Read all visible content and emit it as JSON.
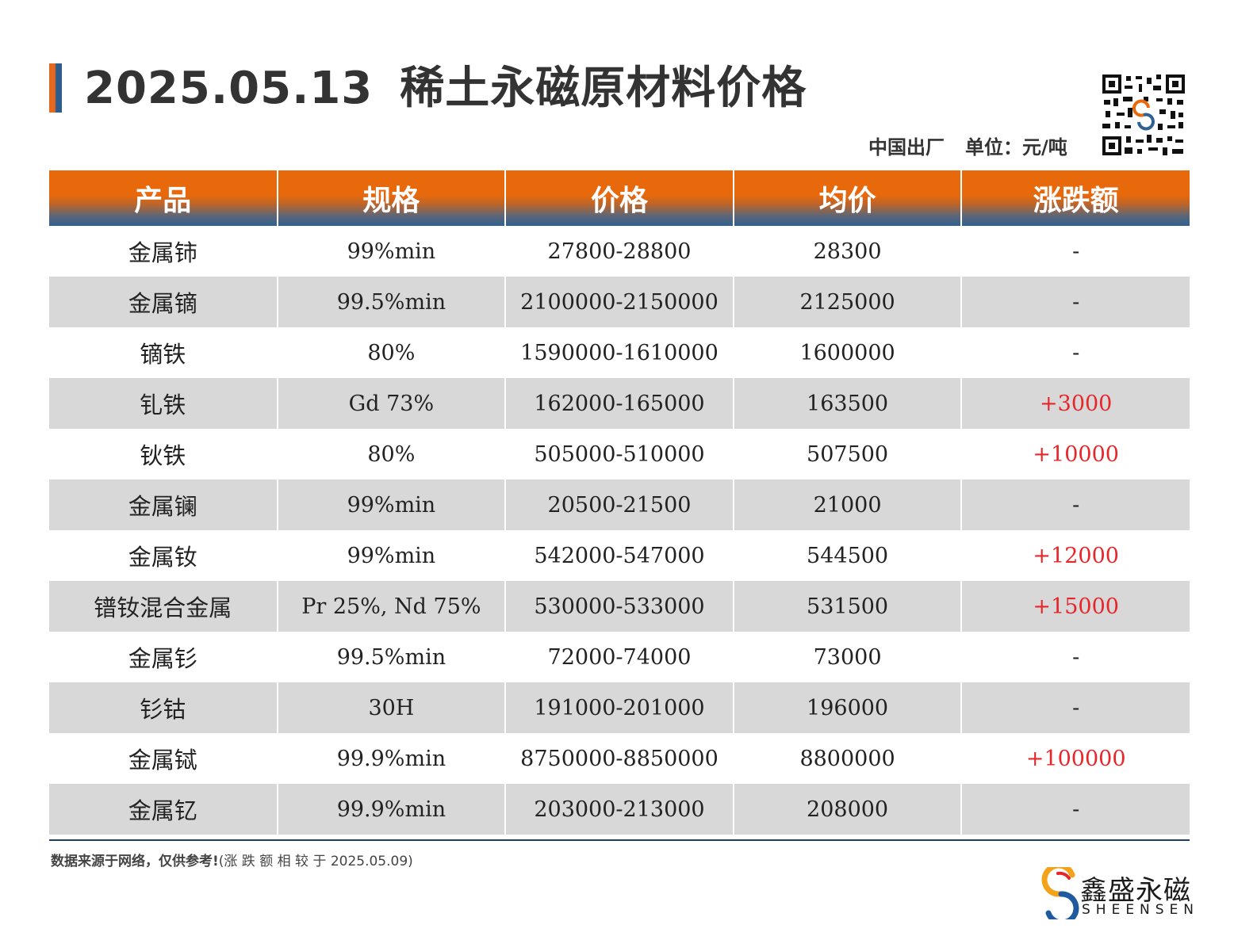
{
  "header": {
    "date": "2025.05.13",
    "title": "稀土永磁原材料价格",
    "origin": "中国出厂",
    "unit": "单位：元/吨"
  },
  "table": {
    "columns": [
      "产品",
      "规格",
      "价格",
      "均价",
      "涨跌额"
    ],
    "rows": [
      {
        "product": "金属铈",
        "spec": "99%min",
        "price": "27800-28800",
        "avg": "28300",
        "change": "-"
      },
      {
        "product": "金属镝",
        "spec": "99.5%min",
        "price": "2100000-2150000",
        "avg": "2125000",
        "change": "-"
      },
      {
        "product": "镝铁",
        "spec": "80%",
        "price": "1590000-1610000",
        "avg": "1600000",
        "change": "-"
      },
      {
        "product": "钆铁",
        "spec": "Gd 73%",
        "price": "162000-165000",
        "avg": "163500",
        "change": "+3000"
      },
      {
        "product": "钬铁",
        "spec": "80%",
        "price": "505000-510000",
        "avg": "507500",
        "change": "+10000"
      },
      {
        "product": "金属镧",
        "spec": "99%min",
        "price": "20500-21500",
        "avg": "21000",
        "change": "-"
      },
      {
        "product": "金属钕",
        "spec": "99%min",
        "price": "542000-547000",
        "avg": "544500",
        "change": "+12000"
      },
      {
        "product": "镨钕混合金属",
        "spec": "Pr 25%, Nd 75%",
        "price": "530000-533000",
        "avg": "531500",
        "change": "+15000"
      },
      {
        "product": "金属钐",
        "spec": "99.5%min",
        "price": "72000-74000",
        "avg": "73000",
        "change": "-"
      },
      {
        "product": "钐钴",
        "spec": "30H",
        "price": "191000-201000",
        "avg": "196000",
        "change": "-"
      },
      {
        "product": "金属铽",
        "spec": "99.9%min",
        "price": "8750000-8850000",
        "avg": "8800000",
        "change": "+100000"
      },
      {
        "product": "金属钇",
        "spec": "99.9%min",
        "price": "203000-213000",
        "avg": "208000",
        "change": "-"
      }
    ]
  },
  "footer": {
    "note_bold": "数据来源于网络，仅供参考!",
    "note_rest": "(涨 跌 额 相 较 于 2025.05.09)"
  },
  "brand": {
    "name_cn": "鑫盛永磁",
    "name_en": "SHEENSEN"
  },
  "colors": {
    "accent_orange": "#e8680c",
    "accent_blue": "#2f6192",
    "up": "#e8262a",
    "row_alt": "#d8d8d8"
  }
}
